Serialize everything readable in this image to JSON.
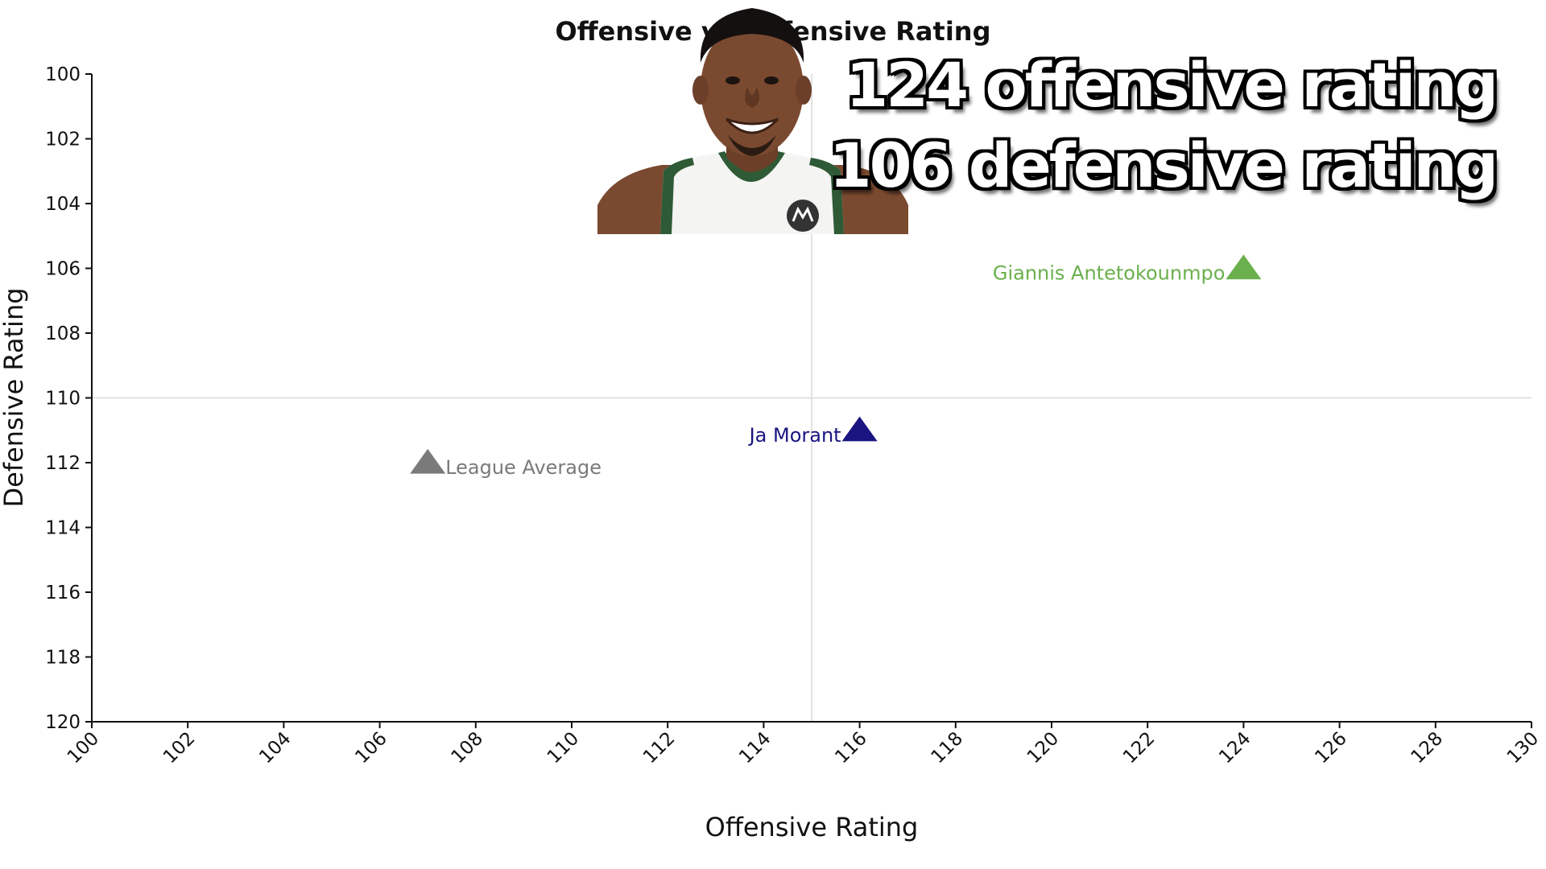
{
  "chart_data": {
    "type": "scatter",
    "title": "Offensive vs Defensive Rating",
    "xlabel": "Offensive Rating",
    "ylabel": "Defensive Rating",
    "xlim": [
      100,
      130
    ],
    "ylim": [
      100,
      120
    ],
    "y_inverted": true,
    "x_ticks": [
      "100",
      "102",
      "104",
      "106",
      "108",
      "110",
      "112",
      "114",
      "116",
      "118",
      "120",
      "122",
      "124",
      "126",
      "128",
      "130"
    ],
    "y_ticks": [
      "100",
      "102",
      "104",
      "106",
      "108",
      "110",
      "112",
      "114",
      "116",
      "118",
      "120"
    ],
    "reference_lines": {
      "x": 115,
      "y": 110
    },
    "grid": false,
    "marker": "triangle",
    "points": [
      {
        "label": "League Average",
        "x": 107,
        "y": 112,
        "color": "#7a7a7a",
        "label_side": "right"
      },
      {
        "label": "Ja Morant",
        "x": 116,
        "y": 111,
        "color": "#1a1580",
        "label_side": "left"
      },
      {
        "label": "Giannis Antetokounmpo",
        "x": 124,
        "y": 106,
        "color": "#6ab04c",
        "label_side": "left"
      }
    ]
  },
  "overlay": {
    "line1": "124 offensive rating",
    "line2": "106 defensive rating"
  },
  "colors": {
    "axis": "#111111",
    "reference_line": "#d9d9d9",
    "jersey_trim": "#2e5a36",
    "jersey_body": "#f4f4f2",
    "skin": "#7a4a30"
  }
}
